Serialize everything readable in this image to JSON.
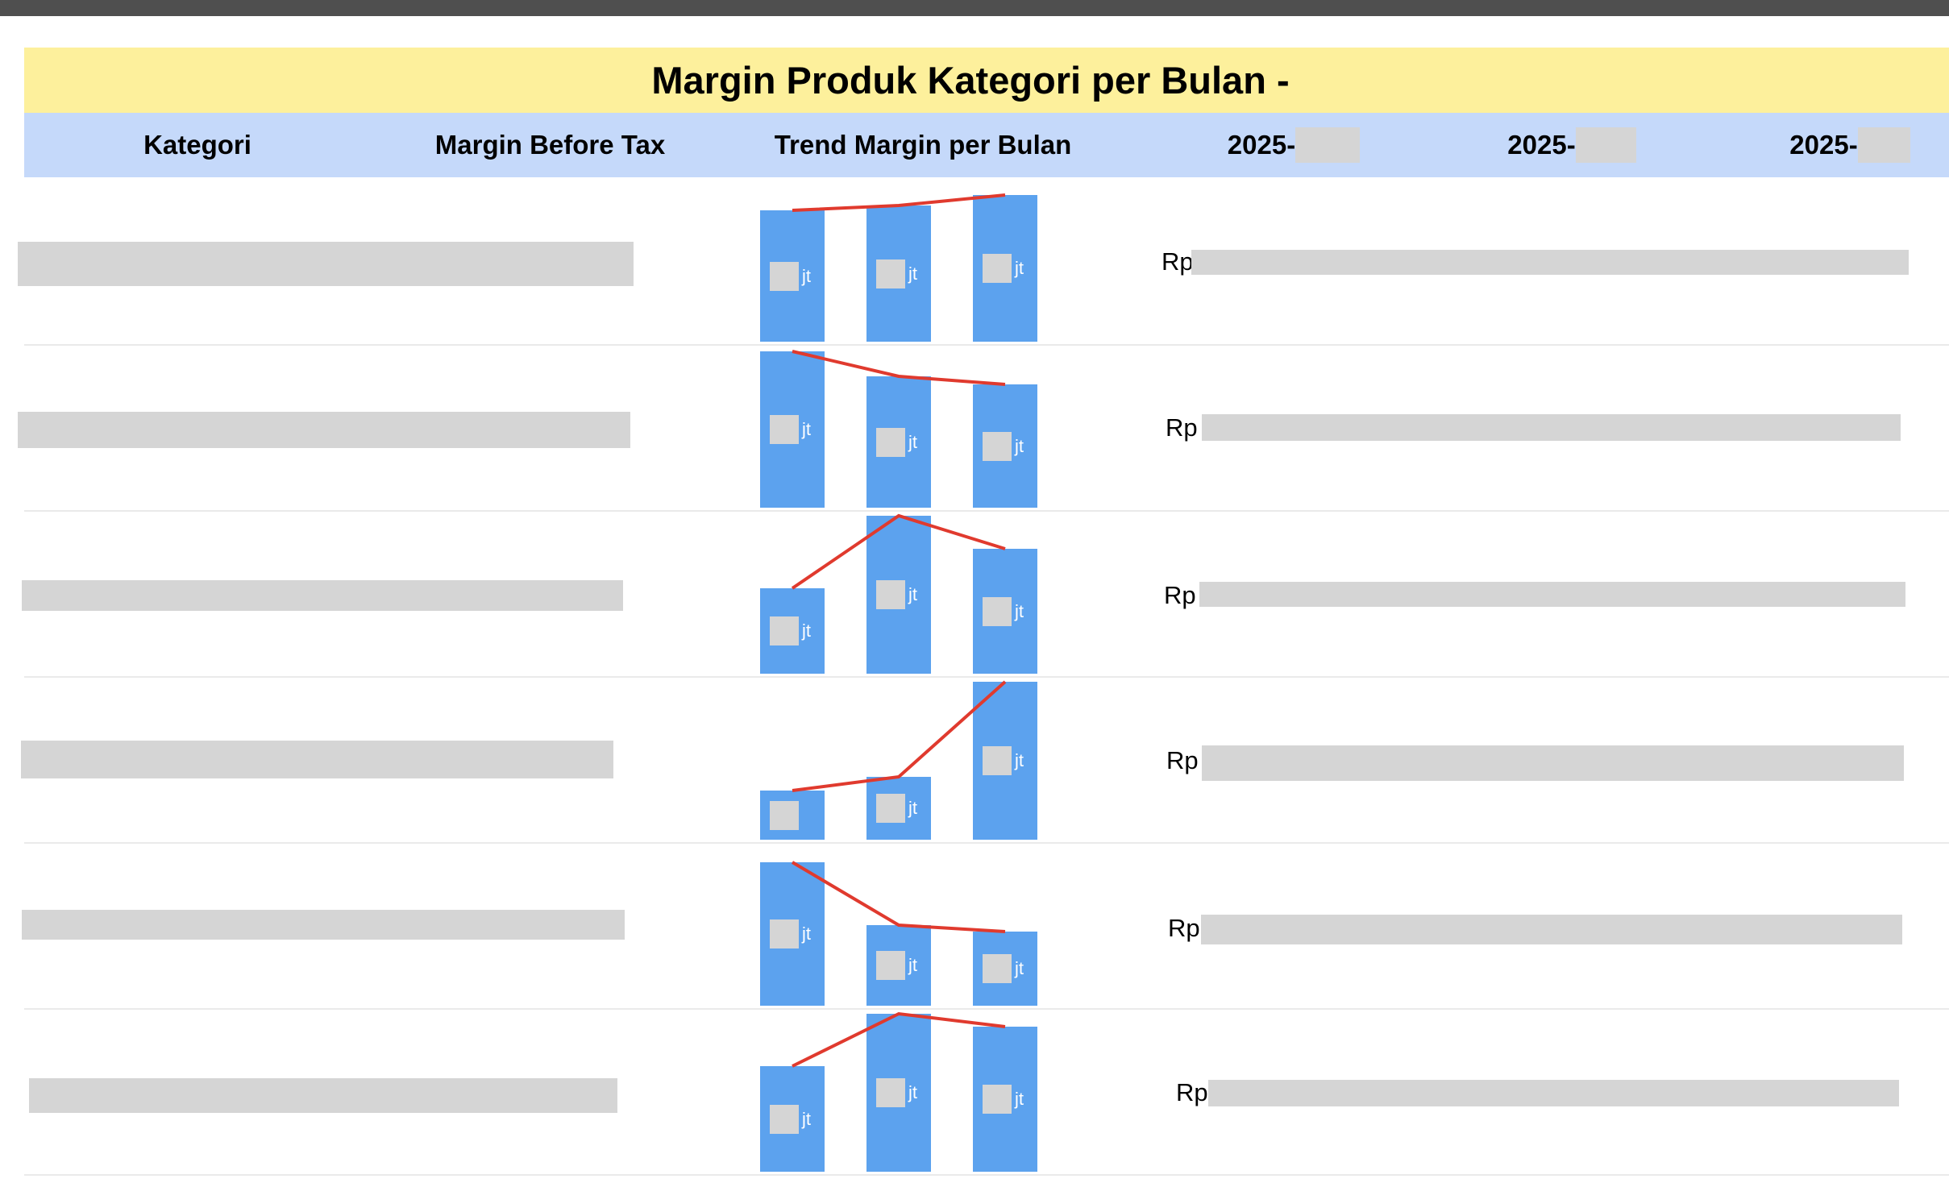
{
  "report": {
    "title": "Margin Produk Kategori per Bulan -"
  },
  "headers": {
    "kategori": "Kategori",
    "margin_before_tax": "Margin Before Tax",
    "trend": "Trend Margin per Bulan",
    "months": [
      "2025-",
      "2025-",
      "2025-"
    ]
  },
  "rows": [
    {
      "currency": "Rp",
      "bars": [
        {
          "label": "jt",
          "level": 0.83
        },
        {
          "label": "jt",
          "level": 0.86
        },
        {
          "label": "jt",
          "level": 0.93
        }
      ]
    },
    {
      "currency": "Rp",
      "bars": [
        {
          "label": "jt",
          "level": 0.99
        },
        {
          "label": "jt",
          "level": 0.83
        },
        {
          "label": "jt",
          "level": 0.78
        }
      ]
    },
    {
      "currency": "Rp",
      "bars": [
        {
          "label": "jt",
          "level": 0.54
        },
        {
          "label": "jt",
          "level": 1.0
        },
        {
          "label": "jt",
          "level": 0.79
        }
      ]
    },
    {
      "currency": "Rp",
      "bars": [
        {
          "label": "",
          "level": 0.31
        },
        {
          "label": "jt",
          "level": 0.4
        },
        {
          "label": "jt",
          "level": 1.0
        }
      ]
    },
    {
      "currency": "Rp",
      "bars": [
        {
          "label": "jt",
          "level": 0.91
        },
        {
          "label": "jt",
          "level": 0.51
        },
        {
          "label": "jt",
          "level": 0.47
        }
      ]
    },
    {
      "currency": "Rp",
      "bars": [
        {
          "label": "jt",
          "level": 0.67
        },
        {
          "label": "jt",
          "level": 1.0
        },
        {
          "label": "jt",
          "level": 0.92
        }
      ]
    }
  ],
  "colors": {
    "title_bg": "#fdf09c",
    "header_bg": "#c5d9fa",
    "bar": "#5ca2ee",
    "trend_line": "#e03a2e",
    "redaction": "#d5d5d5"
  }
}
